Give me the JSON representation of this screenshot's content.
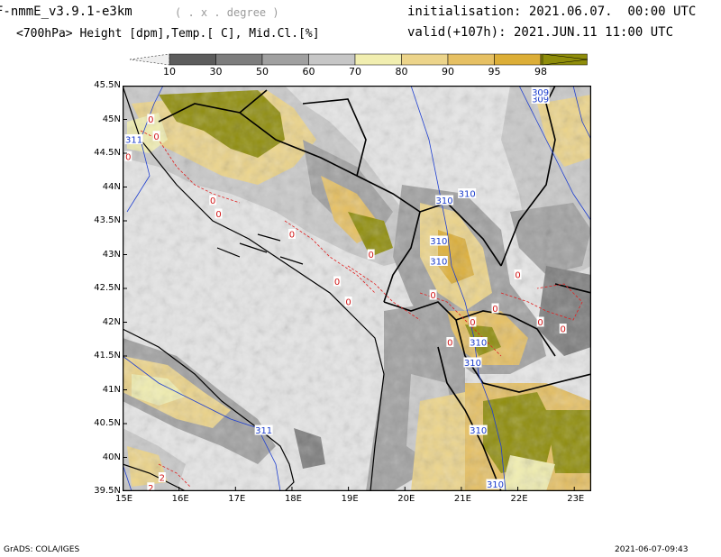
{
  "header": {
    "model": "F-nmmE_v3.9.1-e3km",
    "units_note": "( . x . degree )",
    "init": "initialisation: 2021.06.07.  00:00 UTC",
    "fields": "<700hPa> Height [dpm],Temp.[ C], Mid.Cl.[%]",
    "valid": "valid(+107h): 2021.JUN.11 11:00 UTC"
  },
  "colorbar": {
    "labels": [
      "10",
      "30",
      "50",
      "60",
      "70",
      "80",
      "90",
      "95",
      "98"
    ],
    "colors": [
      "#5c5c5c",
      "#7d7d7d",
      "#a0a0a0",
      "#c6c6c6",
      "#f1eeb0",
      "#ecd48a",
      "#e6c063",
      "#dcae37",
      "#8f8d0a"
    ],
    "below_color": "#efefef"
  },
  "axes": {
    "lat_labels": [
      "45.5N",
      "45N",
      "44.5N",
      "44N",
      "43.5N",
      "43N",
      "42.5N",
      "42N",
      "41.5N",
      "41N",
      "40.5N",
      "40N",
      "39.5N"
    ],
    "lon_labels": [
      "15E",
      "16E",
      "17E",
      "18E",
      "19E",
      "20E",
      "21E",
      "22E",
      "23E"
    ],
    "xlim": [
      15,
      23.3
    ],
    "ylim": [
      39.5,
      45.5
    ]
  },
  "contours": {
    "height_labels": [
      {
        "text": "311",
        "lon": 15.2,
        "lat": 44.7
      },
      {
        "text": "310",
        "lon": 20.7,
        "lat": 43.8
      },
      {
        "text": "310",
        "lon": 21.1,
        "lat": 43.9
      },
      {
        "text": "310",
        "lon": 20.6,
        "lat": 43.2
      },
      {
        "text": "310",
        "lon": 20.6,
        "lat": 42.9
      },
      {
        "text": "310",
        "lon": 21.3,
        "lat": 41.7
      },
      {
        "text": "310",
        "lon": 21.2,
        "lat": 41.4
      },
      {
        "text": "311",
        "lon": 17.5,
        "lat": 40.4
      },
      {
        "text": "310",
        "lon": 21.3,
        "lat": 40.4
      },
      {
        "text": "310",
        "lon": 21.6,
        "lat": 39.6
      },
      {
        "text": "309",
        "lon": 22.4,
        "lat": 45.3
      },
      {
        "text": "309",
        "lon": 22.4,
        "lat": 45.4
      }
    ],
    "temp_labels": [
      {
        "text": "0",
        "lon": 15.5,
        "lat": 45.0
      },
      {
        "text": "0",
        "lon": 15.6,
        "lat": 44.75
      },
      {
        "text": "0",
        "lon": 15.1,
        "lat": 44.45
      },
      {
        "text": "0",
        "lon": 16.6,
        "lat": 43.8
      },
      {
        "text": "0",
        "lon": 16.7,
        "lat": 43.6
      },
      {
        "text": "0",
        "lon": 18.0,
        "lat": 43.3
      },
      {
        "text": "0",
        "lon": 19.4,
        "lat": 43.0
      },
      {
        "text": "0",
        "lon": 18.8,
        "lat": 42.6
      },
      {
        "text": "0",
        "lon": 19.0,
        "lat": 42.3
      },
      {
        "text": "0",
        "lon": 20.5,
        "lat": 42.4
      },
      {
        "text": "0",
        "lon": 21.2,
        "lat": 42.0
      },
      {
        "text": "0",
        "lon": 20.8,
        "lat": 41.7
      },
      {
        "text": "0",
        "lon": 21.6,
        "lat": 42.2
      },
      {
        "text": "0",
        "lon": 22.0,
        "lat": 42.7
      },
      {
        "text": "0",
        "lon": 22.4,
        "lat": 42.0
      },
      {
        "text": "0",
        "lon": 22.8,
        "lat": 41.9
      },
      {
        "text": "2",
        "lon": 15.7,
        "lat": 39.7
      },
      {
        "text": "2",
        "lon": 15.5,
        "lat": 39.55
      }
    ]
  },
  "footer": {
    "left": "GrADS: COLA/IGES",
    "right": "2021-06-07-09:43"
  }
}
